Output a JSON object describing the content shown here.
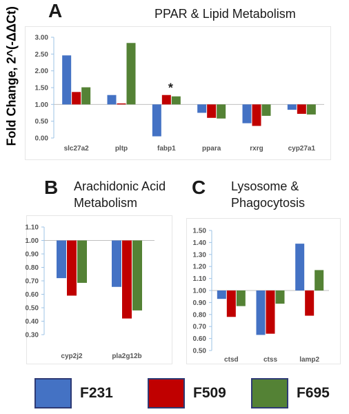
{
  "panels": [
    {
      "letter": "A",
      "title": "PPAR & Lipid Metabolism"
    },
    {
      "letter": "B",
      "title_line1": "Arachidonic Acid",
      "title_line2": "Metabolism"
    },
    {
      "letter": "C",
      "title_line1": "Lysosome &",
      "title_line2": "Phagocytosis"
    }
  ],
  "ylabel": "Fold Change, 2^(-ΔΔCt)",
  "colors": {
    "F231": "#4472C4",
    "F509": "#C00000",
    "F695": "#548235"
  },
  "legend": [
    {
      "label": "F231",
      "color": "#4472C4"
    },
    {
      "label": "F509",
      "color": "#C00000"
    },
    {
      "label": "F695",
      "color": "#548235"
    }
  ],
  "chart_data": [
    {
      "type": "bar",
      "title": "PPAR & Lipid Metabolism",
      "ylabel": "Fold Change, 2^(-ΔΔCt)",
      "categories": [
        "slc27a2",
        "pltp",
        "fabp1",
        "ppara",
        "rxrg",
        "cyp27a1"
      ],
      "ylim": [
        0,
        3
      ],
      "yticks": [
        "0.00",
        "0.50",
        "1.00",
        "1.50",
        "2.00",
        "2.50",
        "3.00"
      ],
      "baseline": 1.0,
      "series": [
        {
          "name": "F231",
          "values": [
            2.46,
            1.28,
            0.05,
            0.75,
            0.44,
            0.84
          ]
        },
        {
          "name": "F509",
          "values": [
            1.37,
            1.03,
            1.28,
            0.6,
            0.36,
            0.72
          ]
        },
        {
          "name": "F695",
          "values": [
            1.51,
            2.83,
            1.24,
            0.58,
            0.66,
            0.7
          ]
        }
      ],
      "annotations": [
        {
          "text": "*",
          "category": "fabp1"
        }
      ]
    },
    {
      "type": "bar",
      "title": "Arachidonic Acid Metabolism",
      "categories": [
        "cyp2j2",
        "pla2g12b"
      ],
      "ylim": [
        0.3,
        1.1
      ],
      "yticks": [
        "0.30",
        "0.40",
        "0.50",
        "0.60",
        "0.70",
        "0.80",
        "0.90",
        "1.00",
        "1.10"
      ],
      "baseline": 1.0,
      "series": [
        {
          "name": "F231",
          "values": [
            0.72,
            0.655
          ]
        },
        {
          "name": "F509",
          "values": [
            0.59,
            0.42
          ]
        },
        {
          "name": "F695",
          "values": [
            0.685,
            0.48
          ]
        }
      ]
    },
    {
      "type": "bar",
      "title": "Lysosome & Phagocytosis",
      "categories": [
        "ctsd",
        "ctss",
        "lamp2"
      ],
      "ylim": [
        0.5,
        1.5
      ],
      "yticks": [
        "0.50",
        "0.60",
        "0.70",
        "0.80",
        "0.90",
        "1.00",
        "1.10",
        "1.20",
        "1.30",
        "1.40",
        "1.50"
      ],
      "baseline": 1.0,
      "series": [
        {
          "name": "F231",
          "values": [
            0.93,
            0.63,
            1.39
          ]
        },
        {
          "name": "F509",
          "values": [
            0.78,
            0.64,
            0.79
          ]
        },
        {
          "name": "F695",
          "values": [
            0.87,
            0.89,
            1.17
          ]
        }
      ]
    }
  ]
}
